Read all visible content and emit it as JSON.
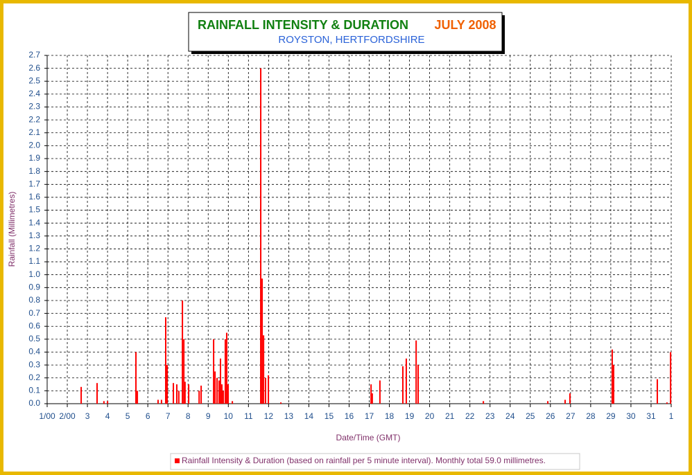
{
  "chart_data": {
    "type": "bar",
    "title": "RAINFALL INTENSITY & DURATION",
    "period": "JULY 2008",
    "subtitle": "ROYSTON, HERTFORDSHIRE",
    "y_label": "Rainfall (Millimetres)",
    "x_label": "Date/Time (GMT)",
    "xlim": [
      1,
      32
    ],
    "xticks": [
      {
        "value": 1,
        "label": "1/00"
      },
      {
        "value": 2,
        "label": "2/00"
      },
      3,
      4,
      5,
      6,
      7,
      8,
      9,
      10,
      11,
      12,
      13,
      14,
      15,
      16,
      17,
      18,
      19,
      20,
      21,
      22,
      23,
      24,
      25,
      26,
      27,
      28,
      29,
      30,
      31,
      {
        "value": 32,
        "label": "1"
      }
    ],
    "ylim": [
      0,
      2.7
    ],
    "yticks": [
      {
        "value": 0,
        "label": "0.0"
      },
      0.1,
      0.2,
      0.3,
      0.4,
      0.5,
      0.6,
      0.7,
      0.8,
      0.9,
      {
        "value": 1,
        "label": "1.0"
      },
      1.1,
      1.2,
      1.3,
      1.4,
      1.5,
      1.6,
      1.7,
      1.8,
      1.9,
      {
        "value": 2,
        "label": "2.0"
      },
      2.1,
      2.2,
      2.3,
      2.4,
      2.5,
      2.6,
      2.7
    ],
    "grid": true,
    "x": [
      2.69,
      3.48,
      3.82,
      4.0,
      5.41,
      5.48,
      6.51,
      6.68,
      6.89,
      6.96,
      7.27,
      7.44,
      7.54,
      7.72,
      7.79,
      7.85,
      8.03,
      8.55,
      8.65,
      9.27,
      9.34,
      9.44,
      9.54,
      9.61,
      9.68,
      9.75,
      9.85,
      9.92,
      9.99,
      10.2,
      11.61,
      11.68,
      11.75,
      11.85,
      11.99,
      12.61,
      17.09,
      17.15,
      17.53,
      18.67,
      18.84,
      19.33,
      19.43,
      22.67,
      25.87,
      26.73,
      26.97,
      29.07,
      29.14,
      31.31,
      31.79,
      31.97
    ],
    "series": [
      {
        "name": "Rainfall Intensity & Duration (based on rainfall per 5 minute interval). Monthly total 59.0 millimetres.",
        "color": "#ff0000",
        "values": [
          0.13,
          0.16,
          0.02,
          0.02,
          0.4,
          0.1,
          0.03,
          0.03,
          0.67,
          0.3,
          0.16,
          0.15,
          0.1,
          0.8,
          0.5,
          0.17,
          0.15,
          0.1,
          0.14,
          0.5,
          0.25,
          0.2,
          0.18,
          0.35,
          0.15,
          0.1,
          0.5,
          0.55,
          0.15,
          0.02,
          2.6,
          0.97,
          0.53,
          0.2,
          0.22,
          0.01,
          0.15,
          0.08,
          0.18,
          0.29,
          0.35,
          0.49,
          0.3,
          0.02,
          0.02,
          0.03,
          0.08,
          0.42,
          0.3,
          0.19,
          0.01,
          0.4
        ]
      }
    ]
  }
}
